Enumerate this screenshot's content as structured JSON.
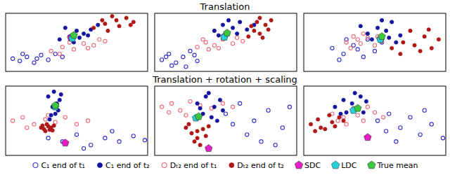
{
  "chart_data": [
    {
      "type": "scatter",
      "title": "Translation",
      "xlim": [
        0,
        100
      ],
      "ylim": [
        0,
        100
      ],
      "tick_labels": false,
      "legend": "bottom",
      "series": [
        {
          "name": "C₁ end of t₁",
          "color": "#3030d0",
          "marker": "circle-open",
          "x": [
            5,
            10,
            15,
            20,
            25,
            30,
            35,
            40,
            12,
            22
          ],
          "values": [
            22,
            18,
            25,
            15,
            28,
            20,
            30,
            25,
            30,
            22
          ]
        },
        {
          "name": "C₁ end of t₂",
          "color": "#1414a0",
          "marker": "circle",
          "x": [
            38,
            45,
            50,
            55,
            42,
            60,
            48,
            65,
            52,
            58
          ],
          "values": [
            55,
            60,
            70,
            65,
            75,
            72,
            50,
            80,
            58,
            62
          ]
        },
        {
          "name": "Dₜ₂ end of t₁",
          "color": "#f06a78",
          "marker": "circle-open",
          "x": [
            32,
            40,
            48,
            55,
            62,
            70,
            45,
            38,
            58,
            66
          ],
          "values": [
            35,
            42,
            38,
            48,
            45,
            52,
            50,
            30,
            40,
            55
          ]
        },
        {
          "name": "Dₜ₂ end of t₂",
          "color": "#b01818",
          "marker": "circle",
          "x": [
            62,
            70,
            78,
            85,
            90,
            72,
            80,
            88,
            75,
            68
          ],
          "values": [
            75,
            82,
            88,
            92,
            85,
            70,
            78,
            80,
            95,
            88
          ]
        },
        {
          "name": "SDC",
          "color": "#e61ec8",
          "marker": "pentagon",
          "x": [
            46
          ],
          "values": [
            58
          ]
        },
        {
          "name": "LDC",
          "color": "#22d3dc",
          "marker": "pentagon",
          "x": [
            47
          ],
          "values": [
            57
          ]
        },
        {
          "name": "True mean",
          "color": "#3cc83c",
          "marker": "pentagon",
          "x": [
            48
          ],
          "values": [
            62
          ]
        }
      ]
    },
    {
      "type": "scatter",
      "xlim": [
        0,
        100
      ],
      "ylim": [
        0,
        100
      ],
      "tick_labels": false,
      "series": [
        {
          "name": "C₁ end of t₁",
          "color": "#3030d0",
          "marker": "circle-open",
          "x": [
            5,
            10,
            15,
            20,
            25,
            30,
            12,
            22,
            28,
            8
          ],
          "values": [
            20,
            30,
            15,
            25,
            35,
            18,
            10,
            8,
            28,
            25
          ]
        },
        {
          "name": "C₁ end of t₂",
          "color": "#1414a0",
          "marker": "circle",
          "x": [
            42,
            48,
            55,
            60,
            50,
            65,
            45,
            58,
            70,
            52
          ],
          "values": [
            70,
            80,
            75,
            85,
            60,
            72,
            62,
            65,
            80,
            88
          ]
        },
        {
          "name": "Dₜ₂ end of t₁",
          "color": "#f06a78",
          "marker": "circle-open",
          "x": [
            30,
            36,
            42,
            48,
            55,
            62,
            38,
            45,
            58,
            34
          ],
          "values": [
            42,
            50,
            45,
            55,
            48,
            52,
            38,
            40,
            58,
            55
          ]
        },
        {
          "name": "Dₜ₂ end of t₂",
          "color": "#b01818",
          "marker": "circle",
          "x": [
            66,
            70,
            74,
            78,
            72,
            80,
            76,
            68,
            82,
            74
          ],
          "values": [
            60,
            70,
            65,
            80,
            85,
            72,
            58,
            78,
            88,
            92
          ]
        },
        {
          "name": "SDC",
          "color": "#e61ec8",
          "marker": "pentagon",
          "x": [
            49
          ],
          "values": [
            60
          ]
        },
        {
          "name": "LDC",
          "color": "#22d3dc",
          "marker": "pentagon",
          "x": [
            49
          ],
          "values": [
            59
          ]
        },
        {
          "name": "True mean",
          "color": "#3cc83c",
          "marker": "pentagon",
          "x": [
            51
          ],
          "values": [
            66
          ]
        }
      ]
    },
    {
      "type": "scatter",
      "xlim": [
        0,
        100
      ],
      "ylim": [
        0,
        100
      ],
      "tick_labels": false,
      "series": [
        {
          "name": "C₁ end of t₁",
          "color": "#3030d0",
          "marker": "circle-open",
          "x": [
            20,
            28,
            35,
            42,
            50,
            55,
            30,
            25,
            45,
            38
          ],
          "values": [
            40,
            30,
            45,
            25,
            35,
            50,
            55,
            20,
            55,
            38
          ]
        },
        {
          "name": "C₁ end of t₂",
          "color": "#1414a0",
          "marker": "circle",
          "x": [
            45,
            52,
            58,
            62,
            48,
            68,
            55,
            40,
            65,
            60
          ],
          "values": [
            65,
            75,
            70,
            85,
            55,
            62,
            88,
            78,
            50,
            58
          ]
        },
        {
          "name": "Dₜ₂ end of t₁",
          "color": "#f06a78",
          "marker": "circle-open",
          "x": [
            30,
            35,
            40,
            45,
            50,
            33,
            42,
            52,
            38,
            55
          ],
          "values": [
            50,
            60,
            48,
            58,
            45,
            40,
            65,
            60,
            55,
            52
          ]
        },
        {
          "name": "Dₜ₂ end of t₂",
          "color": "#b01818",
          "marker": "circle",
          "x": [
            62,
            70,
            78,
            85,
            90,
            75,
            95,
            68,
            82,
            88
          ],
          "values": [
            40,
            50,
            45,
            60,
            40,
            70,
            55,
            30,
            35,
            72
          ]
        },
        {
          "name": "SDC",
          "color": "#e61ec8",
          "marker": "pentagon",
          "x": [
            54
          ],
          "values": [
            56
          ]
        },
        {
          "name": "LDC",
          "color": "#22d3dc",
          "marker": "pentagon",
          "x": [
            54
          ],
          "values": [
            55
          ]
        },
        {
          "name": "True mean",
          "color": "#3cc83c",
          "marker": "pentagon",
          "x": [
            55
          ],
          "values": [
            60
          ]
        }
      ]
    },
    {
      "type": "scatter",
      "title": "Translation + rotation + scaling",
      "xlim": [
        0,
        100
      ],
      "ylim": [
        0,
        100
      ],
      "tick_labels": false,
      "series": [
        {
          "name": "C₁ end of t₁",
          "color": "#3030d0",
          "marker": "circle-open",
          "x": [
            30,
            40,
            50,
            60,
            70,
            80,
            90,
            98,
            55,
            75
          ],
          "values": [
            25,
            20,
            30,
            15,
            25,
            20,
            28,
            22,
            10,
            35
          ]
        },
        {
          "name": "C₁ end of t₂",
          "color": "#1414a0",
          "marker": "circle",
          "x": [
            30,
            34,
            38,
            33,
            37,
            32,
            36,
            31,
            39,
            35
          ],
          "values": [
            85,
            92,
            80,
            70,
            65,
            58,
            75,
            52,
            88,
            60
          ]
        },
        {
          "name": "Dₜ₂ end of t₁",
          "color": "#f06a78",
          "marker": "circle-open",
          "x": [
            5,
            12,
            20,
            28,
            35,
            42,
            50,
            58,
            15,
            30
          ],
          "values": [
            50,
            55,
            45,
            52,
            48,
            55,
            45,
            50,
            40,
            58
          ]
        },
        {
          "name": "Dₜ₂ end of t₂",
          "color": "#b01818",
          "marker": "circle",
          "x": [
            27,
            30,
            33,
            29,
            25,
            32,
            28,
            34,
            26,
            31
          ],
          "values": [
            38,
            42,
            36,
            45,
            40,
            40,
            35,
            43,
            43,
            37
          ]
        },
        {
          "name": "SDC",
          "color": "#e61ec8",
          "marker": "pentagon",
          "x": [
            42
          ],
          "values": [
            18
          ]
        },
        {
          "name": "LDC",
          "color": "#22d3dc",
          "marker": "pentagon",
          "x": [
            35
          ],
          "values": [
            70
          ]
        },
        {
          "name": "True mean",
          "color": "#3cc83c",
          "marker": "pentagon",
          "x": [
            35
          ],
          "values": [
            72
          ]
        }
      ]
    },
    {
      "type": "scatter",
      "xlim": [
        0,
        100
      ],
      "ylim": [
        0,
        100
      ],
      "tick_labels": false,
      "series": [
        {
          "name": "C₁ end of t₁",
          "color": "#3030d0",
          "marker": "circle-open",
          "x": [
            50,
            60,
            70,
            80,
            90,
            95,
            65,
            75,
            85,
            55
          ],
          "values": [
            60,
            75,
            50,
            65,
            40,
            70,
            30,
            20,
            15,
            45
          ]
        },
        {
          "name": "C₁ end of t₂",
          "color": "#1414a0",
          "marker": "circle",
          "x": [
            30,
            36,
            42,
            46,
            34,
            40,
            48,
            32,
            38,
            44
          ],
          "values": [
            75,
            85,
            70,
            80,
            60,
            55,
            65,
            68,
            90,
            50
          ]
        },
        {
          "name": "Dₜ₂ end of t₁",
          "color": "#f06a78",
          "marker": "circle-open",
          "x": [
            5,
            12,
            18,
            25,
            32,
            40,
            48,
            55,
            10,
            22
          ],
          "values": [
            70,
            75,
            65,
            78,
            72,
            68,
            75,
            70,
            62,
            58
          ]
        },
        {
          "name": "Dₜ₂ end of t₂",
          "color": "#b01818",
          "marker": "circle",
          "x": [
            22,
            26,
            30,
            34,
            28,
            36,
            24,
            32,
            38,
            30
          ],
          "values": [
            40,
            32,
            25,
            38,
            20,
            28,
            45,
            15,
            42,
            35
          ]
        },
        {
          "name": "SDC",
          "color": "#e61ec8",
          "marker": "pentagon",
          "x": [
            38
          ],
          "values": [
            10
          ]
        },
        {
          "name": "LDC",
          "color": "#22d3dc",
          "marker": "pentagon",
          "x": [
            29
          ],
          "values": [
            54
          ]
        },
        {
          "name": "True mean",
          "color": "#3cc83c",
          "marker": "pentagon",
          "x": [
            31
          ],
          "values": [
            56
          ]
        }
      ]
    },
    {
      "type": "scatter",
      "xlim": [
        0,
        100
      ],
      "ylim": [
        0,
        100
      ],
      "tick_labels": false,
      "series": [
        {
          "name": "C₁ end of t₁",
          "color": "#3030d0",
          "marker": "circle-open",
          "x": [
            52,
            60,
            68,
            75,
            82,
            90,
            98,
            65,
            85,
            58
          ],
          "values": [
            50,
            60,
            40,
            55,
            30,
            45,
            25,
            20,
            65,
            35
          ]
        },
        {
          "name": "C₁ end of t₂",
          "color": "#1414a0",
          "marker": "circle",
          "x": [
            22,
            28,
            34,
            40,
            30,
            38,
            44,
            26,
            36,
            42
          ],
          "values": [
            70,
            80,
            75,
            85,
            62,
            68,
            78,
            60,
            90,
            62
          ]
        },
        {
          "name": "Dₜ₂ end of t₁",
          "color": "#f06a78",
          "marker": "circle-open",
          "x": [
            20,
            28,
            35,
            42,
            50,
            56,
            30,
            45,
            38,
            24
          ],
          "values": [
            60,
            55,
            68,
            50,
            62,
            55,
            45,
            70,
            58,
            50
          ]
        },
        {
          "name": "Dₜ₂ end of t₂",
          "color": "#b01818",
          "marker": "circle",
          "x": [
            5,
            10,
            15,
            20,
            25,
            12,
            18,
            8,
            22,
            28
          ],
          "values": [
            45,
            52,
            38,
            48,
            55,
            40,
            58,
            35,
            42,
            50
          ]
        },
        {
          "name": "SDC",
          "color": "#e61ec8",
          "marker": "pentagon",
          "x": [
            45
          ],
          "values": [
            26
          ]
        },
        {
          "name": "LDC",
          "color": "#22d3dc",
          "marker": "pentagon",
          "x": [
            35
          ],
          "values": [
            65
          ]
        },
        {
          "name": "True mean",
          "color": "#3cc83c",
          "marker": "pentagon",
          "x": [
            38
          ],
          "values": [
            68
          ]
        }
      ]
    }
  ]
}
